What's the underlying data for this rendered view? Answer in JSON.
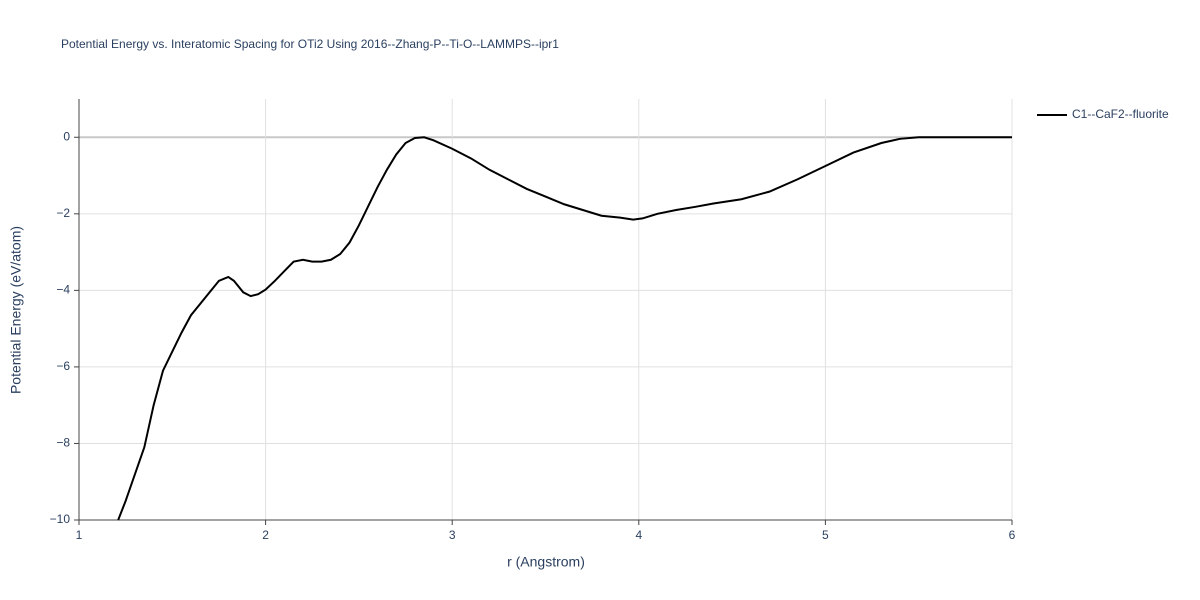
{
  "chart_data": {
    "type": "line",
    "title": "Potential Energy vs. Interatomic Spacing for OTi2 Using 2016--Zhang-P--Ti-O--LAMMPS--ipr1",
    "x_label": "r (Angstrom)",
    "y_label": "Potential Energy (eV/atom)",
    "xlim": [
      1,
      6
    ],
    "xticks": [
      1,
      2,
      3,
      4,
      5,
      6
    ],
    "ylim": [
      -10,
      1
    ],
    "yticks": [
      {
        "value": -10,
        "label": "−10"
      },
      {
        "value": -8,
        "label": "−8"
      },
      {
        "value": -6,
        "label": "−6"
      },
      {
        "value": -4,
        "label": "−4"
      },
      {
        "value": -2,
        "label": "−2"
      },
      0
    ],
    "grid": true,
    "legend": "right",
    "x": [
      1.21,
      1.25,
      1.3,
      1.35,
      1.4,
      1.45,
      1.5,
      1.55,
      1.6,
      1.65,
      1.7,
      1.75,
      1.8,
      1.83,
      1.88,
      1.92,
      1.96,
      2.0,
      2.05,
      2.1,
      2.15,
      2.2,
      2.25,
      2.3,
      2.35,
      2.4,
      2.45,
      2.5,
      2.55,
      2.6,
      2.65,
      2.7,
      2.75,
      2.8,
      2.85,
      2.9,
      3.0,
      3.1,
      3.2,
      3.3,
      3.4,
      3.5,
      3.6,
      3.7,
      3.8,
      3.9,
      3.97,
      4.02,
      4.1,
      4.2,
      4.3,
      4.4,
      4.55,
      4.7,
      4.85,
      5.0,
      5.15,
      5.3,
      5.4,
      5.5,
      5.7,
      6.0
    ],
    "series": [
      {
        "name": "C1--CaF2--fluorite",
        "color": "#000000",
        "values": [
          -10,
          -9.5,
          -8.8,
          -8.1,
          -7.0,
          -6.1,
          -5.6,
          -5.1,
          -4.65,
          -4.35,
          -4.05,
          -3.75,
          -3.65,
          -3.75,
          -4.05,
          -4.15,
          -4.1,
          -3.98,
          -3.75,
          -3.5,
          -3.25,
          -3.2,
          -3.25,
          -3.25,
          -3.2,
          -3.05,
          -2.75,
          -2.3,
          -1.8,
          -1.3,
          -0.85,
          -0.45,
          -0.15,
          -0.02,
          0,
          -0.08,
          -0.3,
          -0.55,
          -0.85,
          -1.1,
          -1.35,
          -1.55,
          -1.75,
          -1.9,
          -2.05,
          -2.1,
          -2.15,
          -2.12,
          -2.0,
          -1.9,
          -1.82,
          -1.73,
          -1.62,
          -1.42,
          -1.1,
          -0.75,
          -0.4,
          -0.15,
          -0.04,
          0,
          0,
          0
        ]
      }
    ]
  }
}
